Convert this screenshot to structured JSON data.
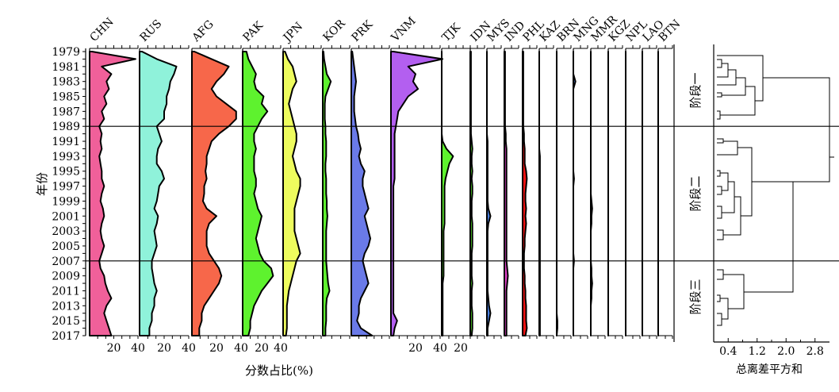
{
  "chart_data": {
    "type": "area",
    "subtype": "stratigraphic-diagram",
    "xlabel": "分数占比(%)",
    "ylabel": "年份",
    "years": [
      1979,
      1980,
      1981,
      1982,
      1983,
      1984,
      1985,
      1986,
      1987,
      1988,
      1989,
      1990,
      1991,
      1992,
      1993,
      1994,
      1995,
      1996,
      1997,
      1998,
      1999,
      2000,
      2001,
      2002,
      2003,
      2004,
      2005,
      2006,
      2007,
      2008,
      2009,
      2010,
      2011,
      2012,
      2013,
      2014,
      2015,
      2016,
      2017
    ],
    "year_tick_labels": [
      "1979",
      "1981",
      "1983",
      "1985",
      "1987",
      "1989",
      "1991",
      "1993",
      "1995",
      "1997",
      "1999",
      "2001",
      "2003",
      "2005",
      "2007",
      "2009",
      "2011",
      "2013",
      "2015",
      "2017"
    ],
    "x_tick_labels": [
      "20",
      "40"
    ],
    "stage_boundaries": [
      1989,
      2007
    ],
    "series": [
      {
        "name": "CHN",
        "color": "#f0609a",
        "max": 40,
        "values": [
          2,
          38,
          10,
          18,
          14,
          16,
          12,
          14,
          10,
          12,
          8,
          10,
          9,
          10,
          8,
          9,
          10,
          10,
          12,
          10,
          9,
          11,
          12,
          10,
          9,
          10,
          12,
          10,
          8,
          9,
          12,
          13,
          15,
          18,
          14,
          12,
          14,
          16,
          18
        ]
      },
      {
        "name": "RUS",
        "color": "#8ff2da",
        "max": 40,
        "values": [
          2,
          14,
          30,
          28,
          25,
          24,
          22,
          22,
          20,
          20,
          14,
          16,
          18,
          15,
          14,
          14,
          18,
          20,
          16,
          15,
          14,
          12,
          15,
          14,
          12,
          13,
          14,
          12,
          10,
          10,
          11,
          12,
          14,
          12,
          12,
          10,
          10,
          8,
          8
        ]
      },
      {
        "name": "AFG",
        "color": "#f7674a",
        "max": 40,
        "values": [
          2,
          16,
          30,
          26,
          20,
          16,
          20,
          28,
          36,
          36,
          30,
          22,
          16,
          14,
          12,
          12,
          11,
          12,
          10,
          10,
          9,
          12,
          20,
          14,
          12,
          12,
          12,
          14,
          18,
          22,
          24,
          22,
          18,
          14,
          10,
          8,
          8,
          6,
          6
        ]
      },
      {
        "name": "PAK",
        "color": "#5ef22e",
        "max": 40,
        "values": [
          4,
          6,
          10,
          14,
          12,
          14,
          22,
          20,
          26,
          20,
          16,
          12,
          12,
          14,
          12,
          12,
          12,
          14,
          14,
          12,
          14,
          16,
          20,
          18,
          16,
          14,
          16,
          18,
          22,
          30,
          32,
          26,
          20,
          16,
          12,
          10,
          8,
          8,
          6
        ]
      },
      {
        "name": "JPN",
        "color": "#eefc5e",
        "max": 40,
        "values": [
          2,
          5,
          10,
          12,
          14,
          10,
          8,
          6,
          8,
          10,
          12,
          14,
          14,
          12,
          10,
          12,
          14,
          18,
          18,
          16,
          14,
          12,
          12,
          12,
          12,
          14,
          16,
          18,
          14,
          12,
          10,
          8,
          6,
          5,
          4,
          4,
          4,
          4,
          3
        ]
      },
      {
        "name": "KOR",
        "color": "#5ef22e",
        "max": 40,
        "values": [
          1,
          2,
          4,
          6,
          12,
          8,
          4,
          3,
          3,
          3,
          4,
          4,
          5,
          5,
          5,
          4,
          4,
          5,
          5,
          5,
          6,
          6,
          7,
          6,
          5,
          5,
          5,
          5,
          5,
          6,
          7,
          8,
          10,
          6,
          5,
          5,
          5,
          4,
          4
        ]
      },
      {
        "name": "PRK",
        "color": "#6a7ae8",
        "max": 40,
        "values": [
          1,
          2,
          3,
          4,
          5,
          4,
          3,
          3,
          3,
          4,
          5,
          7,
          8,
          10,
          8,
          10,
          14,
          12,
          12,
          14,
          16,
          18,
          14,
          16,
          18,
          20,
          18,
          14,
          12,
          14,
          16,
          18,
          14,
          10,
          8,
          8,
          6,
          10,
          22
        ]
      },
      {
        "name": "VNM",
        "color": "#b35ff0",
        "max": 40,
        "values": [
          2,
          42,
          14,
          20,
          18,
          22,
          14,
          10,
          6,
          5,
          4,
          3,
          3,
          3,
          3,
          3,
          3,
          3,
          2,
          2,
          2,
          2,
          2,
          2,
          2,
          2,
          2,
          2,
          2,
          2,
          2,
          2,
          2,
          2,
          2,
          2,
          5,
          3,
          2
        ]
      },
      {
        "name": "TJK",
        "color": "#5ef22e",
        "max": 30,
        "values": [
          0,
          0,
          0,
          0,
          0,
          0,
          0,
          0,
          0,
          0,
          0,
          0,
          1,
          5,
          12,
          8,
          6,
          4,
          3,
          3,
          3,
          3,
          3,
          3,
          2,
          2,
          2,
          2,
          2,
          2,
          2,
          1,
          1,
          1,
          1,
          1,
          1,
          1,
          1
        ]
      },
      {
        "name": "IDN",
        "color": "#5ef22e",
        "max": 20,
        "values": [
          1,
          1,
          1,
          1,
          1,
          1,
          1,
          1,
          1,
          1,
          1,
          1,
          2,
          3,
          2,
          2,
          3,
          2,
          3,
          3,
          2,
          2,
          2,
          3,
          3,
          3,
          3,
          2,
          2,
          2,
          2,
          3,
          2,
          2,
          2,
          3,
          3,
          3,
          2
        ]
      },
      {
        "name": "MYS",
        "color": "#4a80e0",
        "max": 20,
        "values": [
          0,
          0,
          0,
          0,
          0,
          0,
          0,
          0,
          0,
          0,
          0,
          0,
          1,
          1,
          1,
          1,
          1,
          1,
          1,
          1,
          1,
          2,
          5,
          2,
          1,
          1,
          1,
          1,
          1,
          1,
          1,
          1,
          1,
          2,
          3,
          5,
          3,
          1,
          1
        ]
      },
      {
        "name": "IND",
        "color": "#e040c8",
        "max": 20,
        "values": [
          1,
          1,
          1,
          1,
          1,
          1,
          1,
          1,
          1,
          1,
          1,
          2,
          2,
          3,
          3,
          3,
          3,
          3,
          3,
          3,
          3,
          3,
          3,
          3,
          3,
          3,
          3,
          3,
          3,
          4,
          5,
          4,
          3,
          3,
          3,
          3,
          3,
          3,
          3
        ]
      },
      {
        "name": "PHL",
        "color": "#f01010",
        "max": 20,
        "values": [
          1,
          1,
          1,
          1,
          1,
          1,
          1,
          1,
          1,
          1,
          1,
          2,
          2,
          3,
          3,
          3,
          5,
          6,
          5,
          4,
          4,
          5,
          4,
          5,
          4,
          3,
          3,
          2,
          2,
          2,
          3,
          3,
          4,
          4,
          5,
          5,
          5,
          6,
          4
        ]
      },
      {
        "name": "KAZ",
        "color": "#5ef22e",
        "max": 20,
        "values": [
          0,
          0,
          0,
          0,
          0,
          0,
          0,
          0,
          0,
          0,
          0,
          0,
          0,
          0,
          1,
          1,
          1,
          1,
          1,
          1,
          1,
          1,
          1,
          1,
          1,
          1,
          1,
          1,
          1,
          1,
          1,
          1,
          1,
          1,
          1,
          1,
          1,
          1,
          1
        ]
      },
      {
        "name": "BRN",
        "color": "#5ef22e",
        "max": 20,
        "values": [
          0,
          0,
          0,
          0,
          0,
          0,
          0,
          0,
          0,
          0,
          0,
          0,
          0,
          0,
          0,
          0,
          0,
          0,
          0,
          0,
          0,
          0,
          0,
          0,
          0,
          0,
          0,
          0,
          0,
          0,
          0,
          0,
          0,
          0,
          0,
          0,
          1,
          1,
          0
        ]
      },
      {
        "name": "MNG",
        "color": "#4a80e0",
        "max": 20,
        "values": [
          0,
          0,
          0,
          0,
          3,
          0,
          0,
          0,
          0,
          0,
          0,
          0,
          0,
          0,
          0,
          0,
          0,
          1,
          0,
          0,
          0,
          0,
          0,
          0,
          0,
          0,
          0,
          0,
          1,
          0,
          0,
          0,
          0,
          0,
          0,
          0,
          0,
          0,
          0
        ]
      },
      {
        "name": "MMR",
        "color": "#4a80e0",
        "max": 20,
        "values": [
          0,
          0,
          0,
          0,
          0,
          0,
          0,
          0,
          0,
          0,
          0,
          0,
          0,
          0,
          0,
          0,
          0,
          0,
          0,
          0,
          1,
          2,
          1,
          1,
          0,
          0,
          0,
          0,
          0,
          1,
          1,
          2,
          1,
          1,
          0,
          0,
          0,
          0,
          0
        ]
      },
      {
        "name": "KGZ",
        "color": "#5ef22e",
        "max": 20,
        "values": [
          0,
          0,
          0,
          0,
          0,
          0,
          0,
          0,
          0,
          0,
          0,
          0,
          0,
          0,
          0,
          0,
          0,
          0,
          0,
          0,
          0,
          0,
          0,
          0,
          0,
          0,
          0,
          0,
          0,
          0,
          0,
          0,
          0,
          0,
          0,
          0,
          0,
          0,
          0
        ]
      },
      {
        "name": "NPL",
        "color": "#5ef22e",
        "max": 20,
        "values": [
          0,
          0,
          0,
          0,
          0,
          0,
          0,
          0,
          0,
          0,
          0,
          0,
          0,
          0,
          0,
          0,
          0,
          0,
          0,
          0,
          0,
          0,
          0,
          0,
          0,
          0,
          0,
          0,
          0,
          0,
          0,
          0,
          0,
          0,
          0,
          0,
          0,
          0,
          0
        ]
      },
      {
        "name": "LAO",
        "color": "#5ef22e",
        "max": 20,
        "values": [
          0,
          0,
          0,
          0,
          0,
          0,
          0,
          0,
          0,
          0,
          0,
          0,
          0,
          0,
          0,
          0,
          0,
          0,
          0,
          0,
          0,
          0,
          0,
          0,
          0,
          0,
          0,
          0,
          0,
          0,
          0,
          0,
          0,
          0,
          0,
          0,
          0,
          0,
          0
        ]
      },
      {
        "name": "BTN",
        "color": "#5ef22e",
        "max": 20,
        "values": [
          0,
          0,
          0,
          0,
          0,
          0,
          0,
          0,
          0,
          0,
          0,
          0,
          0,
          0,
          0,
          0,
          0,
          0,
          0,
          0,
          0,
          0,
          0,
          0,
          0,
          0,
          0,
          0,
          0,
          0,
          0,
          0,
          0,
          0,
          0,
          0,
          0,
          0,
          0
        ]
      }
    ],
    "stages": [
      "阶段一",
      "阶段二",
      "阶段三"
    ],
    "dendrogram": {
      "xlabel": "总离差平方和",
      "x_tick_labels": [
        "0.4",
        "1.2",
        "2.0",
        "2.8"
      ],
      "xlim": [
        0,
        3.2
      ]
    }
  }
}
